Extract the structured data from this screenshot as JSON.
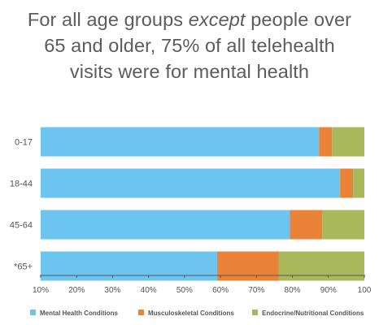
{
  "title": {
    "line1_pre": "For all age groups ",
    "line1_em": "except",
    "line1_post": " people over",
    "line2": "65 and older,  75% of all telehealth",
    "line3": "visits were for mental health"
  },
  "chart_data": {
    "type": "bar",
    "orientation": "horizontal",
    "stacked": true,
    "categories": [
      "0-17",
      "18-44",
      "45-64",
      "*65+"
    ],
    "series": [
      {
        "name": "Mental Health Conditions",
        "color": "#6cc5f1",
        "values": [
          86,
          92.5,
          77,
          54.5
        ]
      },
      {
        "name": "Musculoskeletal Conditions",
        "color": "#ea8338",
        "values": [
          4,
          4,
          10,
          19
        ]
      },
      {
        "name": "Endocrine/Nutritional Conditions",
        "color": "#a9b85a",
        "values": [
          10,
          3.5,
          13,
          26.5
        ]
      }
    ],
    "x_ticks": [
      "10%",
      "20%",
      "30%",
      "40%",
      "50%",
      "60%",
      "70%",
      "80%",
      "90%",
      "100"
    ],
    "xlim": [
      0,
      100
    ],
    "grid": false,
    "legend_position": "bottom"
  }
}
